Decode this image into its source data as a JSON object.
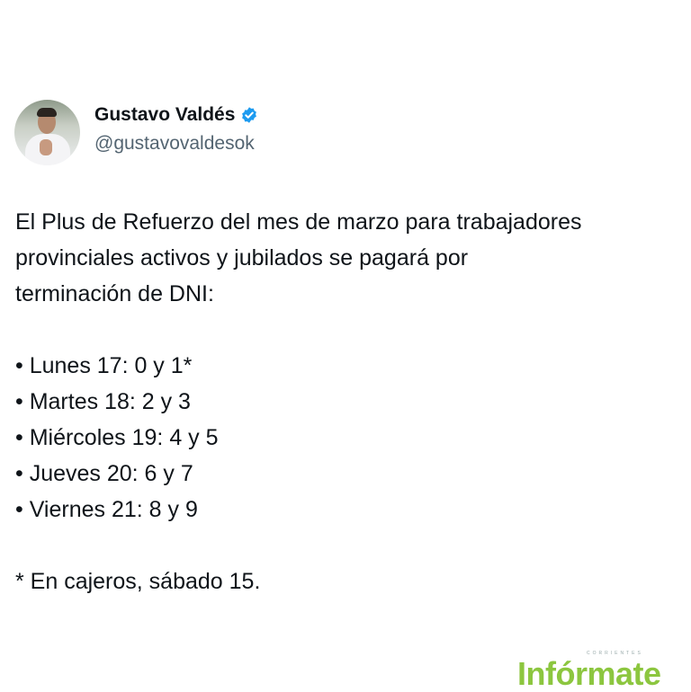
{
  "tweet": {
    "author_name": "Gustavo Valdés",
    "handle": "@gustavovaldesok",
    "verified": true,
    "verified_color": "#1d9bf0",
    "intro_lines": [
      "El Plus de Refuerzo del mes de marzo para trabajadores",
      "provinciales activos y jubilados se pagará por",
      "terminación de DNI:"
    ],
    "schedule": [
      "• Lunes 17: 0 y 1*",
      "• Martes 18: 2 y 3",
      "• Miércoles 19: 4 y 5",
      "• Jueves 20: 6 y 7",
      "• Viernes 21: 8 y 9"
    ],
    "footnote": "* En cajeros, sábado 15."
  },
  "watermark": {
    "logo_text": "Infórmate",
    "logo_subtext": "CORRIENTES",
    "color": "#8cc63f"
  }
}
